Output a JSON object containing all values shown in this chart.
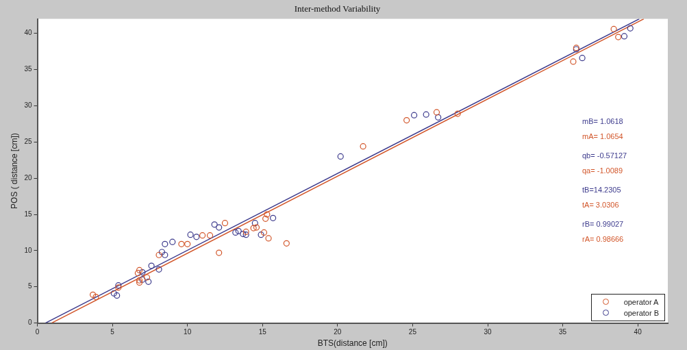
{
  "chart_data": {
    "type": "scatter",
    "title": "Inter-method Variability",
    "xlabel": "BTS(distance [cm])",
    "ylabel": "POS ( distance [cm])",
    "xlim": [
      0,
      42
    ],
    "ylim": [
      0,
      42
    ],
    "xticks": [
      0,
      5,
      10,
      15,
      20,
      25,
      30,
      35,
      40
    ],
    "yticks": [
      0,
      5,
      10,
      15,
      20,
      25,
      30,
      35,
      40
    ],
    "grid": false,
    "legend": "bottom right",
    "marker": "circle",
    "series": [
      {
        "name": "operator A",
        "color": "#d2562a",
        "x": [
          3.7,
          3.9,
          5.4,
          6.7,
          6.8,
          6.8,
          6.8,
          7.3,
          8.1,
          9.6,
          10.0,
          11.0,
          11.5,
          12.1,
          12.5,
          13.9,
          14.4,
          14.6,
          15.3,
          15.2,
          15.1,
          15.4,
          16.6,
          21.7,
          24.6,
          26.6,
          28.0,
          35.7,
          35.9,
          38.4,
          38.7
        ],
        "values": [
          3.9,
          3.6,
          4.9,
          6.9,
          7.3,
          5.9,
          5.6,
          6.3,
          9.4,
          10.9,
          10.9,
          12.1,
          12.1,
          9.7,
          13.8,
          12.6,
          13.1,
          13.2,
          15.0,
          14.4,
          12.5,
          11.7,
          11.0,
          24.4,
          28.0,
          29.1,
          28.9,
          36.1,
          38.0,
          40.6,
          39.5
        ]
      },
      {
        "name": "operator B",
        "color": "#3c3a8c",
        "x": [
          5.1,
          5.3,
          5.4,
          7.0,
          7.0,
          7.4,
          7.6,
          8.1,
          8.3,
          8.5,
          8.5,
          9.0,
          10.2,
          10.6,
          11.8,
          12.1,
          13.2,
          13.4,
          13.7,
          13.9,
          14.5,
          14.9,
          15.7,
          20.2,
          25.1,
          25.9,
          26.7,
          35.9,
          36.3,
          39.1,
          39.5
        ],
        "values": [
          4.1,
          3.8,
          5.2,
          7.0,
          6.0,
          5.7,
          7.9,
          7.4,
          9.8,
          9.4,
          10.9,
          11.2,
          12.2,
          11.9,
          13.6,
          13.2,
          12.5,
          12.7,
          12.3,
          12.2,
          13.8,
          12.2,
          14.5,
          23.0,
          28.7,
          28.8,
          28.4,
          37.8,
          36.6,
          39.6,
          40.7
        ]
      },
      {
        "type": "line",
        "color": "#d2562a",
        "marker": "none",
        "x": [
          0.95,
          40.4
        ],
        "values": [
          0.0,
          42.0
        ]
      },
      {
        "type": "line",
        "color": "#3c3a8c",
        "marker": "none",
        "x": [
          0.54,
          40.1
        ],
        "values": [
          0.0,
          42.0
        ]
      }
    ],
    "annotations": [
      "mB= 1.0618",
      "mA= 1.0654",
      "qb= -0.57127",
      "qa= -1.0089",
      "tB=14.2305",
      "tA= 3.0306",
      "rB= 0.99027",
      "rA= 0.98666"
    ]
  }
}
